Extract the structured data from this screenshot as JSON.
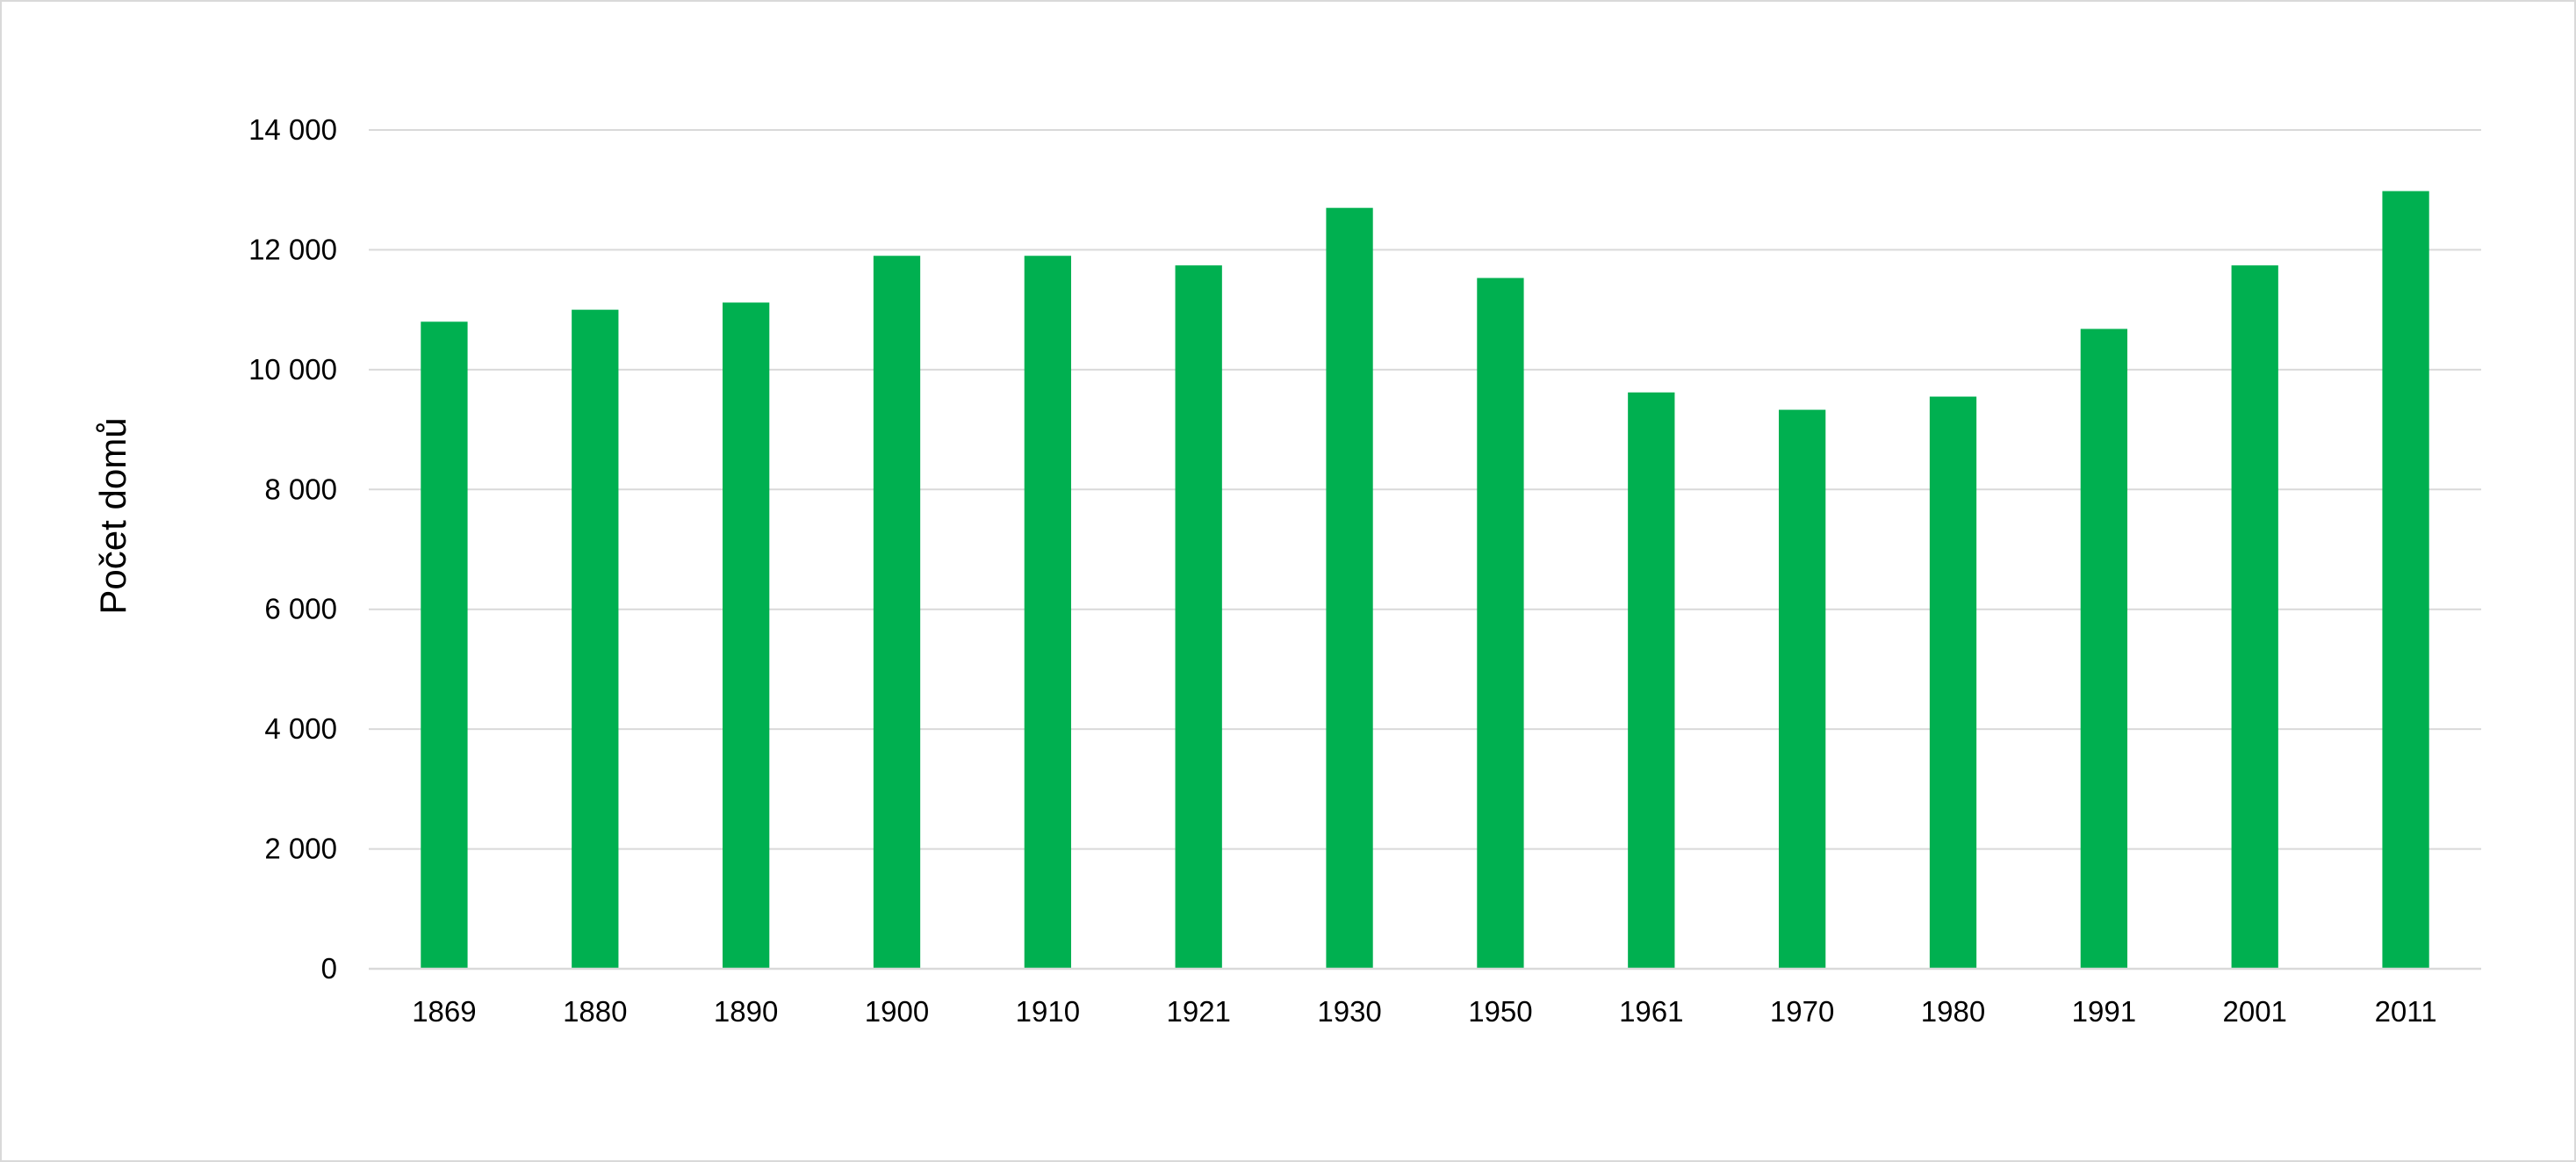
{
  "chart_data": {
    "type": "bar",
    "title": "",
    "xlabel": "",
    "ylabel": "Počet domů",
    "categories": [
      "1869",
      "1880",
      "1890",
      "1900",
      "1910",
      "1921",
      "1930",
      "1950",
      "1961",
      "1970",
      "1980",
      "1991",
      "2001",
      "2011"
    ],
    "values": [
      10800,
      11000,
      11120,
      11900,
      11900,
      11740,
      12700,
      11530,
      9620,
      9330,
      9550,
      10680,
      11740,
      12980
    ],
    "ylim": [
      0,
      14000
    ],
    "yticks": [
      0,
      2000,
      4000,
      6000,
      8000,
      10000,
      12000,
      14000
    ],
    "ytick_labels": [
      "0",
      "2 000",
      "4 000",
      "6 000",
      "8 000",
      "10 000",
      "12 000",
      "14 000"
    ],
    "grid": true,
    "legend": "none",
    "bar_color": "#00b050"
  }
}
